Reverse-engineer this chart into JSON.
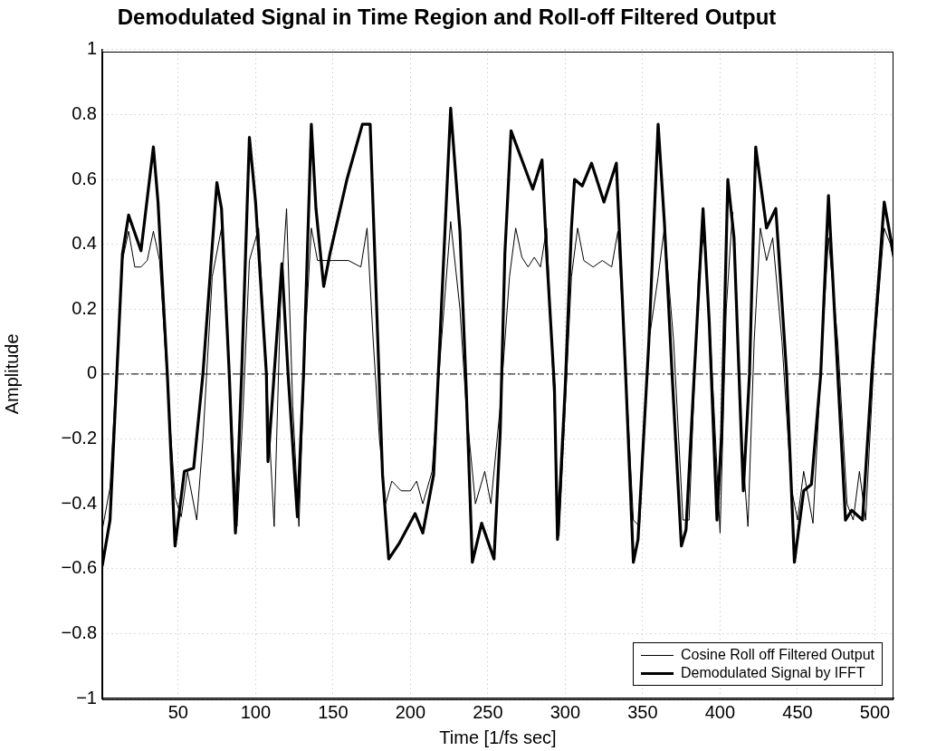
{
  "chart_data": {
    "type": "line",
    "title": "Demodulated Signal in Time Region and Roll-off Filtered Output",
    "xlabel": "Time [1/fs sec]",
    "ylabel": "Amplitude",
    "xlim": [
      1,
      512
    ],
    "xticks": [
      50,
      100,
      150,
      200,
      250,
      300,
      350,
      400,
      450,
      500
    ],
    "ylim": [
      -1,
      1
    ],
    "yticks": [
      {
        "value": -1,
        "label": "−1"
      },
      {
        "value": -0.8,
        "label": "−0.8"
      },
      {
        "value": -0.6,
        "label": "−0.6"
      },
      {
        "value": -0.4,
        "label": "−0.4"
      },
      {
        "value": -0.2,
        "label": "−0.2"
      },
      0,
      0.2,
      0.4,
      0.6,
      0.8,
      1
    ],
    "grid": true,
    "legend": "bottom right",
    "marker": "none",
    "line_style": "solid",
    "ref_lines": [
      {
        "axis": "y",
        "value": 0,
        "color": "#000000",
        "line_style": "dashed"
      }
    ],
    "series": [
      {
        "name": "Cosine Roll off Filtered Output",
        "color": "#000000",
        "x": [
          1,
          6,
          14,
          18,
          22,
          26,
          30,
          34,
          38,
          44,
          48,
          52,
          56,
          62,
          66,
          72,
          78,
          84,
          88,
          92,
          96,
          102,
          108,
          112,
          116,
          120,
          124,
          128,
          132,
          136,
          140,
          150,
          160,
          168,
          172,
          176,
          180,
          184,
          188,
          194,
          200,
          204,
          208,
          214,
          220,
          226,
          232,
          236,
          242,
          248,
          252,
          258,
          264,
          268,
          272,
          276,
          280,
          284,
          288,
          292,
          296,
          300,
          304,
          308,
          312,
          318,
          324,
          330,
          334,
          338,
          344,
          348,
          354,
          360,
          364,
          370,
          376,
          380,
          386,
          390,
          396,
          400,
          404,
          408,
          414,
          418,
          422,
          426,
          430,
          434,
          440,
          446,
          450,
          454,
          460,
          466,
          470,
          476,
          482,
          486,
          490,
          494,
          500,
          506,
          510,
          512
        ],
        "values": [
          -0.48,
          -0.35,
          0.35,
          0.44,
          0.33,
          0.33,
          0.35,
          0.44,
          0.35,
          -0.1,
          -0.38,
          -0.44,
          -0.3,
          -0.45,
          -0.2,
          0.3,
          0.45,
          -0.1,
          -0.47,
          -0.1,
          0.35,
          0.45,
          -0.1,
          -0.47,
          0.2,
          0.51,
          -0.1,
          -0.47,
          0.1,
          0.45,
          0.35,
          0.35,
          0.35,
          0.33,
          0.45,
          0.1,
          -0.2,
          -0.4,
          -0.33,
          -0.36,
          -0.36,
          -0.33,
          -0.4,
          -0.3,
          0.1,
          0.47,
          0.2,
          -0.1,
          -0.4,
          -0.3,
          -0.4,
          -0.1,
          0.3,
          0.45,
          0.36,
          0.33,
          0.36,
          0.33,
          0.45,
          0,
          -0.5,
          -0.1,
          0.3,
          0.45,
          0.35,
          0.33,
          0.35,
          0.33,
          0.44,
          0.1,
          -0.45,
          -0.47,
          0.1,
          0.3,
          0.45,
          0.1,
          -0.45,
          -0.45,
          0.3,
          0.45,
          -0.1,
          -0.49,
          0.2,
          0.5,
          -0.2,
          -0.47,
          0.1,
          0.45,
          0.35,
          0.42,
          0.1,
          -0.35,
          -0.45,
          -0.3,
          -0.46,
          0.1,
          0.42,
          0.1,
          -0.4,
          -0.45,
          -0.3,
          -0.45,
          0.1,
          0.45,
          0.4,
          0.35
        ]
      },
      {
        "name": "Demodulated Signal by IFFT",
        "color": "#000000",
        "x": [
          1,
          6,
          14,
          18,
          26,
          34,
          37,
          43,
          48,
          54,
          60,
          66,
          75,
          78,
          83,
          87,
          91,
          96,
          100,
          107,
          108,
          112,
          117,
          121,
          127,
          131,
          136,
          139,
          144,
          148,
          159,
          169,
          174,
          178,
          182,
          186,
          193,
          203,
          208,
          215,
          219,
          226,
          232,
          236,
          240,
          246,
          254,
          258,
          261,
          265,
          272,
          279,
          285,
          288,
          293,
          295,
          300,
          304,
          306,
          311,
          317,
          325,
          333,
          339,
          344,
          347,
          354,
          360,
          364,
          369,
          375,
          378,
          389,
          393,
          398,
          401,
          405,
          409,
          415,
          419,
          423,
          430,
          436,
          443,
          448,
          454,
          459,
          465,
          470,
          476,
          481,
          485,
          492,
          498,
          506,
          512
        ],
        "values": [
          -0.59,
          -0.45,
          0.37,
          0.49,
          0.38,
          0.7,
          0.53,
          0,
          -0.53,
          -0.3,
          -0.29,
          0,
          0.59,
          0.51,
          0,
          -0.49,
          0,
          0.73,
          0.53,
          0,
          -0.27,
          0,
          0.34,
          0,
          -0.44,
          0,
          0.77,
          0.51,
          0.27,
          0.37,
          0.6,
          0.77,
          0.77,
          0.23,
          -0.31,
          -0.57,
          -0.52,
          -0.43,
          -0.49,
          -0.31,
          0.1,
          0.82,
          0.44,
          -0.04,
          -0.58,
          -0.46,
          -0.57,
          -0.18,
          0.37,
          0.75,
          0.66,
          0.57,
          0.66,
          0.37,
          -0.04,
          -0.51,
          -0.04,
          0.45,
          0.6,
          0.58,
          0.65,
          0.53,
          0.65,
          0,
          -0.58,
          -0.51,
          0.1,
          0.77,
          0.47,
          0,
          -0.53,
          -0.48,
          0.51,
          0.16,
          -0.45,
          -0.18,
          0.6,
          0.42,
          -0.36,
          0,
          0.7,
          0.45,
          0.51,
          0,
          -0.58,
          -0.36,
          -0.34,
          0,
          0.55,
          0,
          -0.45,
          -0.42,
          -0.45,
          0,
          0.53,
          0.37
        ]
      }
    ]
  }
}
